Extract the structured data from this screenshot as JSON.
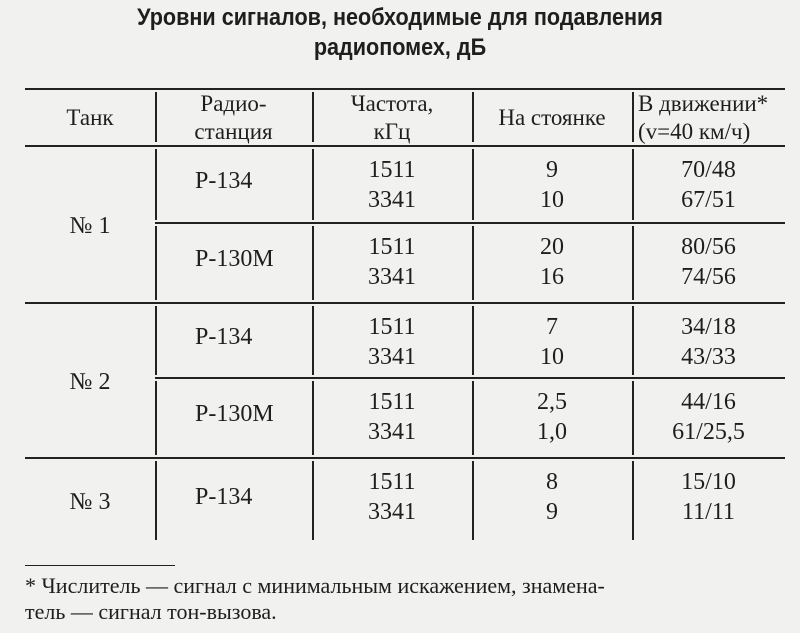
{
  "title": [
    "Уровни сигналов, необходимые для подавления",
    "радиопомех, дБ"
  ],
  "columns": {
    "tank": "Танк",
    "radio": [
      "Радио-",
      "станция"
    ],
    "freq": [
      "Частота,",
      "кГц"
    ],
    "parked": "На стоянке",
    "moving": [
      "В движении*",
      "(v=40 км/ч)"
    ]
  },
  "tanks": [
    {
      "name": "№ 1",
      "stations": [
        {
          "name": "Р-134",
          "freq": [
            "1511",
            "3341"
          ],
          "parked": [
            "9",
            "10"
          ],
          "moving": [
            "70/48",
            "67/51"
          ]
        },
        {
          "name": "Р-130М",
          "freq": [
            "1511",
            "3341"
          ],
          "parked": [
            "20",
            "16"
          ],
          "moving": [
            "80/56",
            "74/56"
          ]
        }
      ]
    },
    {
      "name": "№ 2",
      "stations": [
        {
          "name": "Р-134",
          "freq": [
            "1511",
            "3341"
          ],
          "parked": [
            "7",
            "10"
          ],
          "moving": [
            "34/18",
            "43/33"
          ]
        },
        {
          "name": "Р-130М",
          "freq": [
            "1511",
            "3341"
          ],
          "parked": [
            "2,5",
            "1,0"
          ],
          "moving": [
            "44/16",
            "61/25,5"
          ]
        }
      ]
    },
    {
      "name": "№ 3",
      "stations": [
        {
          "name": "Р-134",
          "freq": [
            "1511",
            "3341"
          ],
          "parked": [
            "8",
            "9"
          ],
          "moving": [
            "15/10",
            "11/11"
          ]
        }
      ]
    }
  ],
  "footnote": [
    "* Числитель — сигнал с минимальным искажением, знамена-",
    "тель — сигнал тон-вызова."
  ]
}
